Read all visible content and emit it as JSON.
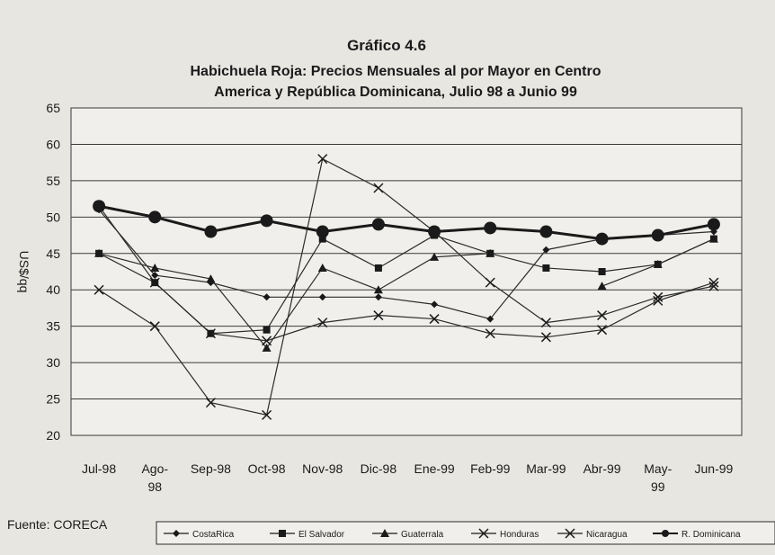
{
  "chart_data": {
    "type": "line",
    "title": "Gráfico 4.6",
    "subtitle_line1": "Habichuela Roja: Precios Mensuales al por Mayor en Centro",
    "subtitle_line2": "America y República Dominicana, Julio 98 a Junio 99",
    "ylabel": "US$/qq",
    "xlabel": "",
    "ylim": [
      20,
      65
    ],
    "yticks": [
      "20",
      "25",
      "30",
      "35",
      "40",
      "45",
      "50",
      "55",
      "60",
      "65"
    ],
    "categories": [
      [
        "Jul-98"
      ],
      [
        "Ago-",
        "98"
      ],
      [
        "Sep-98"
      ],
      [
        "Oct-98"
      ],
      [
        "Nov-98"
      ],
      [
        "Dic-98"
      ],
      [
        "Ene-99"
      ],
      [
        "Feb-99"
      ],
      [
        "Mar-99"
      ],
      [
        "Abr-99"
      ],
      [
        "May-",
        "99"
      ],
      [
        "Jun-99"
      ]
    ],
    "grid": true,
    "legend_position": "bottom",
    "series": [
      {
        "name": "CostaRica",
        "marker": "diamond",
        "color": "#2b2b2b",
        "values": [
          51,
          42,
          41,
          39,
          39,
          39,
          38,
          36,
          45.5,
          47,
          47.5,
          48
        ]
      },
      {
        "name": "El Salvador",
        "marker": "square",
        "color": "#2b2b2b",
        "values": [
          45,
          41,
          34,
          34.5,
          47,
          43,
          47.5,
          45,
          43,
          42.5,
          43.5,
          47
        ]
      },
      {
        "name": "Guaterrala",
        "marker": "triangle",
        "color": "#2b2b2b",
        "values": [
          45,
          43,
          41.5,
          32,
          43,
          40,
          44.5,
          45,
          null,
          40.5,
          43.5,
          47
        ]
      },
      {
        "name": "Honduras",
        "marker": "x",
        "color": "#2b2b2b",
        "values": [
          40,
          35,
          24.5,
          22.8,
          58,
          54,
          48,
          41,
          35.5,
          36.5,
          39,
          40.5
        ]
      },
      {
        "name": "Nicaragua",
        "marker": "x",
        "color": "#2b2b2b",
        "values": [
          51.5,
          41,
          34,
          33,
          35.5,
          36.5,
          36,
          34,
          33.5,
          34.5,
          38.5,
          41
        ]
      },
      {
        "name": "R. Dominicana",
        "marker": "circle",
        "color": "#1a1a1a",
        "values": [
          51.5,
          50,
          48,
          49.5,
          48,
          49,
          48,
          48.5,
          48,
          47,
          47.5,
          49
        ]
      }
    ],
    "source": "Fuente: CORECA"
  },
  "colors": {
    "background": "#e8e6e1",
    "plot_background": "#f0efeb",
    "grid": "#3a3a3a",
    "line": "#2b2b2b"
  }
}
